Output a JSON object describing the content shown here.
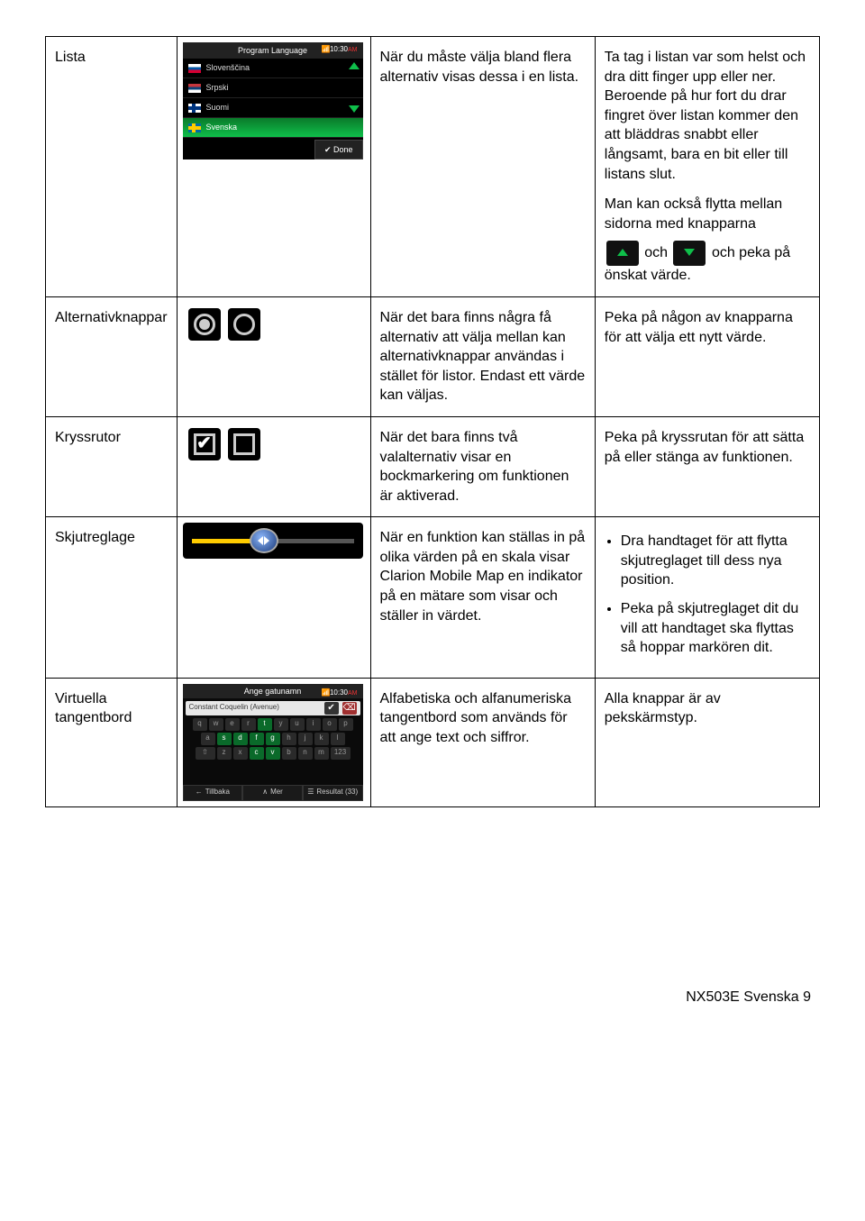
{
  "rows": {
    "lista": {
      "label": "Lista",
      "desc": "När du måste välja bland flera alternativ visas dessa i en lista.",
      "action_p1": "Ta tag i listan var som helst och dra ditt finger upp eller ner. Beroende på hur fort du drar fingret över listan kommer den att bläddras snabbt eller långsamt, bara en bit eller till listans slut.",
      "action_p2": "Man kan också flytta mellan sidorna med knapparna",
      "action_p3_a": "och",
      "action_p3_b": "och peka på önskat värde."
    },
    "alt": {
      "label": "Alternativknappar",
      "desc": "När det bara finns några få alternativ att välja mellan kan alternativknappar användas i stället för listor. Endast ett värde kan väljas.",
      "action": "Peka på någon av knapparna för att välja ett nytt värde."
    },
    "kryss": {
      "label": "Kryssrutor",
      "desc": "När det bara finns två valalternativ visar en bockmarkering om funktionen är aktiverad.",
      "action": "Peka på kryssrutan för att sätta på eller stänga av funktionen."
    },
    "skjut": {
      "label": "Skjutreglage",
      "desc": "När en funktion kan ställas in på olika värden på en skala visar Clarion Mobile Map en indikator på en mätare som visar och ställer in värdet.",
      "b1": "Dra handtaget för att flytta skjutreglaget till dess nya position.",
      "b2": "Peka på skjutreglaget dit du vill att handtaget ska flyttas så hoppar markören dit."
    },
    "kb": {
      "label": "Virtuella tangentbord",
      "desc": "Alfabetiska och alfanumeriska tangentbord som används för att ange text och siffror.",
      "action": "Alla knappar är av pekskärmstyp."
    }
  },
  "screenshots": {
    "lista": {
      "title": "Program Language",
      "time": "10:30",
      "ampm": "AM",
      "items": [
        "Slovenščina",
        "Srpski",
        "Suomi",
        "Svenska"
      ],
      "done": "Done"
    },
    "kb": {
      "title": "Ange gatunamn",
      "time": "10:30",
      "ampm": "AM",
      "input": "Constant Coquelin (Avenue)",
      "row1": [
        "q",
        "w",
        "e",
        "r",
        "t",
        "y",
        "u",
        "i",
        "o",
        "p"
      ],
      "row2": [
        "a",
        "s",
        "d",
        "f",
        "g",
        "h",
        "j",
        "k",
        "l"
      ],
      "row3": [
        "⇧",
        "z",
        "x",
        "c",
        "v",
        "b",
        "n",
        "m",
        "123"
      ],
      "active_keys": [
        "t",
        "s",
        "d",
        "f",
        "g",
        "c",
        "v"
      ],
      "back": "Tillbaka",
      "more": "Mer",
      "result": "Resultat (33)"
    }
  },
  "footer": "NX503E Svenska 9"
}
